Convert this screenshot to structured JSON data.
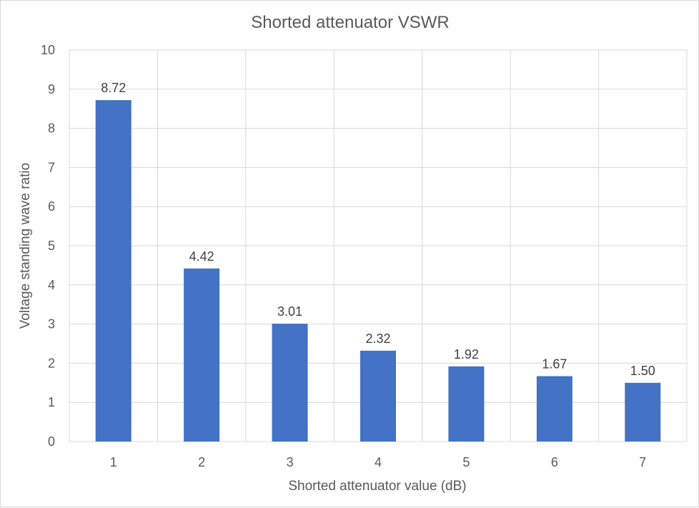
{
  "chart_data": {
    "type": "bar",
    "title": "Shorted attenuator VSWR",
    "xlabel": "Shorted attenuator value (dB)",
    "ylabel": "Voltage standing wave ratio",
    "categories": [
      "1",
      "2",
      "3",
      "4",
      "5",
      "6",
      "7"
    ],
    "values": [
      8.72,
      4.42,
      3.01,
      2.32,
      1.92,
      1.67,
      1.5
    ],
    "data_labels": [
      "8.72",
      "4.42",
      "3.01",
      "2.32",
      "1.92",
      "1.67",
      "1.50"
    ],
    "ylim": [
      0,
      10
    ],
    "yticks": [
      "0",
      "1",
      "2",
      "3",
      "4",
      "5",
      "6",
      "7",
      "8",
      "9",
      "10"
    ],
    "grid": true,
    "bar_color": "#4472c4"
  }
}
